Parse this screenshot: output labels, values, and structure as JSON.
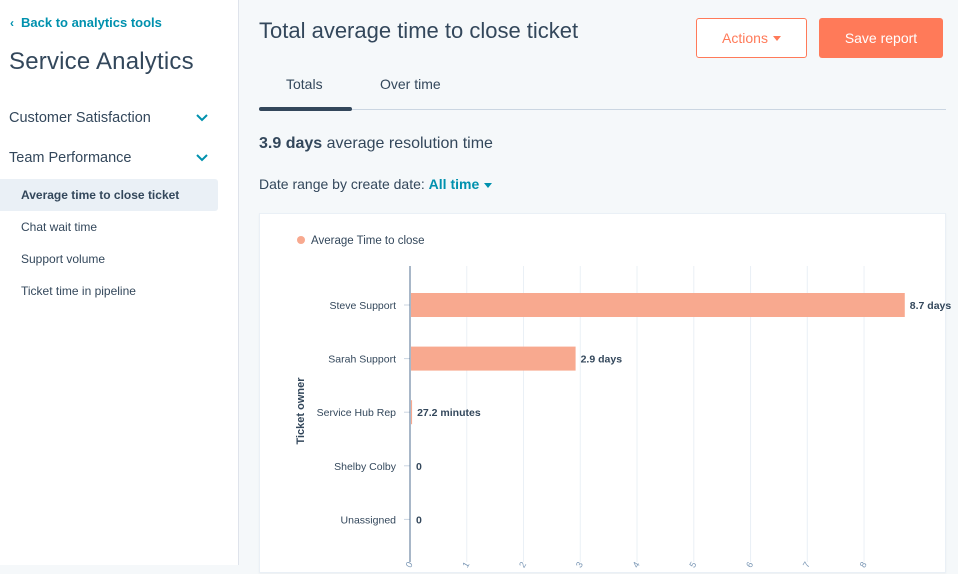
{
  "sidebar": {
    "back_label": "Back to analytics tools",
    "app_title": "Service Analytics",
    "sections": [
      {
        "label": "Customer Satisfaction"
      },
      {
        "label": "Team Performance"
      }
    ],
    "items": [
      {
        "label": "Average time to close ticket",
        "active": true
      },
      {
        "label": "Chat wait time"
      },
      {
        "label": "Support volume"
      },
      {
        "label": "Ticket time in pipeline"
      }
    ]
  },
  "header": {
    "title": "Total average time to close ticket",
    "actions_label": "Actions",
    "save_label": "Save report"
  },
  "tabs": [
    {
      "label": "Totals",
      "active": true
    },
    {
      "label": "Over time"
    }
  ],
  "summary": {
    "value": "3.9 days",
    "text": "average resolution time"
  },
  "date_range": {
    "label": "Date range by create date:",
    "value": "All time"
  },
  "colors": {
    "accent": "#ff7a59",
    "link": "#0091ae",
    "bar": "#f8a98f",
    "axis": "#516f90"
  },
  "chart_data": {
    "type": "bar",
    "orientation": "horizontal",
    "legend": [
      "Average Time to close"
    ],
    "ylabel": "Ticket owner",
    "categories": [
      "Steve Support",
      "Sarah Support",
      "Service Hub Rep",
      "Shelby Colby",
      "Unassigned"
    ],
    "series": [
      {
        "name": "Average Time to close",
        "values_days": [
          8.7,
          2.9,
          0.0189,
          0,
          0
        ],
        "data_labels": [
          "8.7 days",
          "2.9 days",
          "27.2 minutes",
          "0",
          "0"
        ]
      }
    ],
    "xlim": [
      0,
      9.25
    ],
    "x_ticks": [
      0,
      1,
      2,
      3,
      4,
      5,
      6,
      7,
      8
    ],
    "grid": true
  }
}
